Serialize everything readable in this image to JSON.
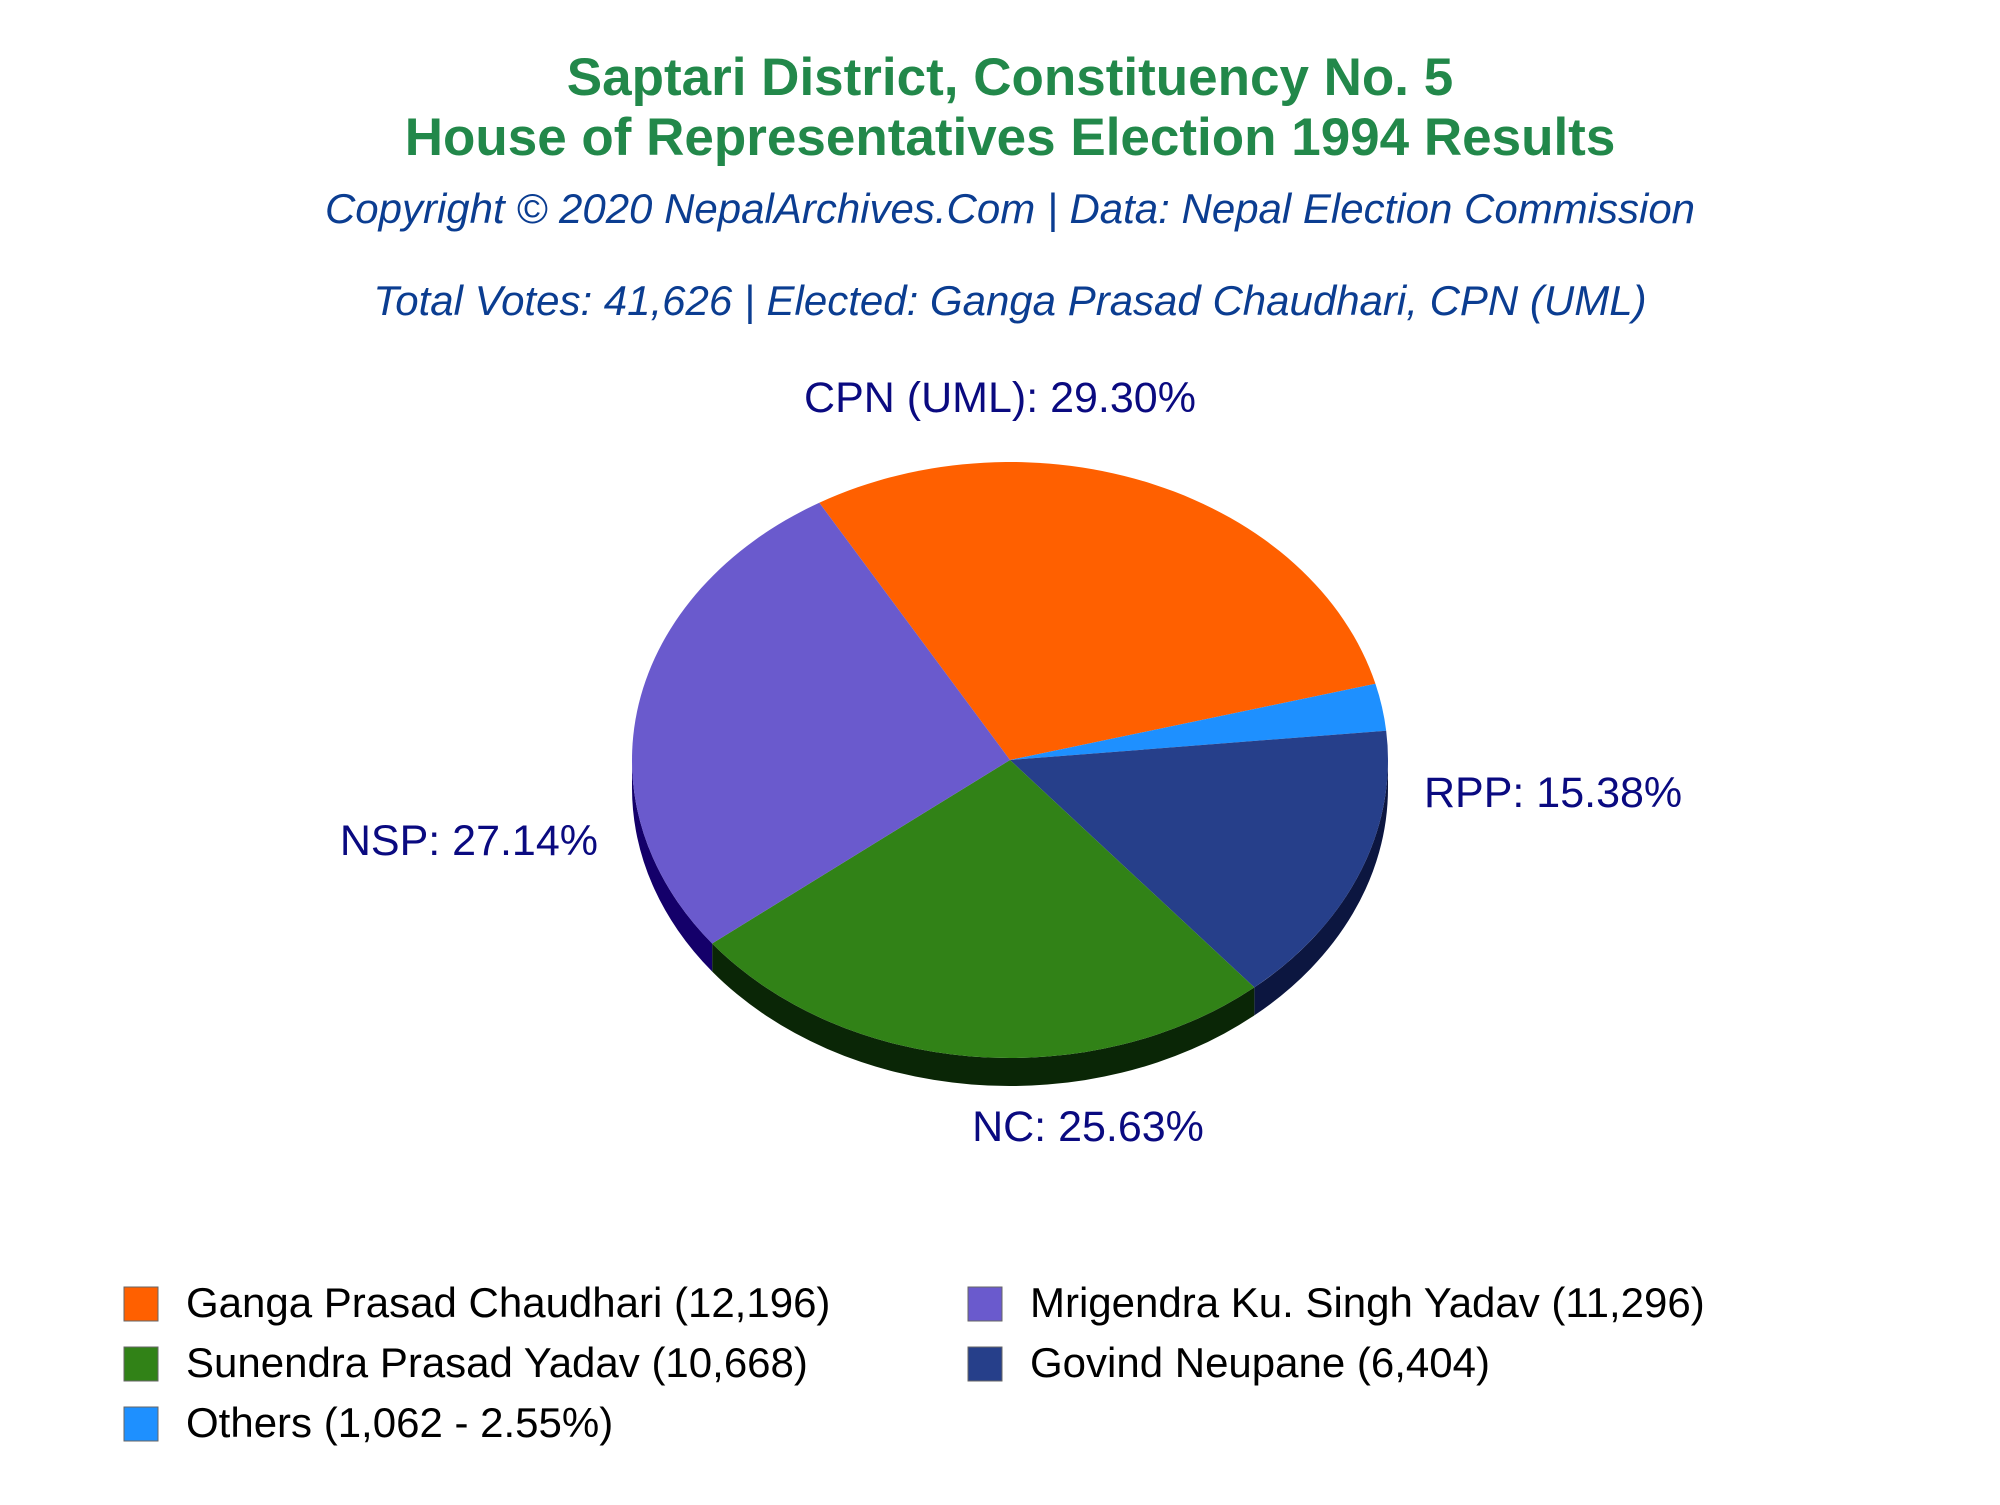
{
  "chart_data": {
    "type": "pie",
    "title_lines": [
      "Saptari District, Constituency No. 5",
      "House of Representatives Election 1994 Results"
    ],
    "subtitle_lines": [
      "Copyright © 2020 NepalArchives.Com | Data: Nepal Election Commission",
      "Total Votes: 41,626 | Elected: Ganga Prasad Chaudhari, CPN (UML)"
    ],
    "slices": [
      {
        "party": "CPN (UML)",
        "candidate": "Ganga Prasad Chaudhari",
        "votes": 12196,
        "percent": 29.3,
        "label": "CPN (UML): 29.30%",
        "legend": "Ganga Prasad Chaudhari (12,196)",
        "color": "#FF6000",
        "side_color": "#7A2E00"
      },
      {
        "party": "Others",
        "candidate": "Others",
        "votes": 1062,
        "percent": 2.55,
        "label": "",
        "legend": "Others (1,062 - 2.55%)",
        "color": "#1E90FF",
        "side_color": "#0B3F80"
      },
      {
        "party": "RPP",
        "candidate": "Govind Neupane",
        "votes": 6404,
        "percent": 15.38,
        "label": "RPP: 15.38%",
        "legend": "Govind Neupane (6,404)",
        "color": "#263F8A",
        "side_color": "#0C1640"
      },
      {
        "party": "NC",
        "candidate": "Sunendra Prasad Yadav",
        "votes": 10668,
        "percent": 25.63,
        "label": "NC: 25.63%",
        "legend": "Sunendra Prasad Yadav (10,668)",
        "color": "#318217",
        "side_color": "#0A2606"
      },
      {
        "party": "NSP",
        "candidate": "Mrigendra Ku. Singh Yadav",
        "votes": 11296,
        "percent": 27.14,
        "label": "NSP: 27.14%",
        "legend": "Mrigendra Ku. Singh Yadav (11,296)",
        "color": "#6A5ACD",
        "side_color": "#14006A"
      }
    ],
    "legend_order": [
      0,
      4,
      3,
      2,
      1
    ],
    "legend_placement": "bottom",
    "colors": {
      "title": "#22884A",
      "subtitle": "#0B3D91",
      "slice_label": "#0A0A80",
      "legend_text": "#000000"
    }
  }
}
